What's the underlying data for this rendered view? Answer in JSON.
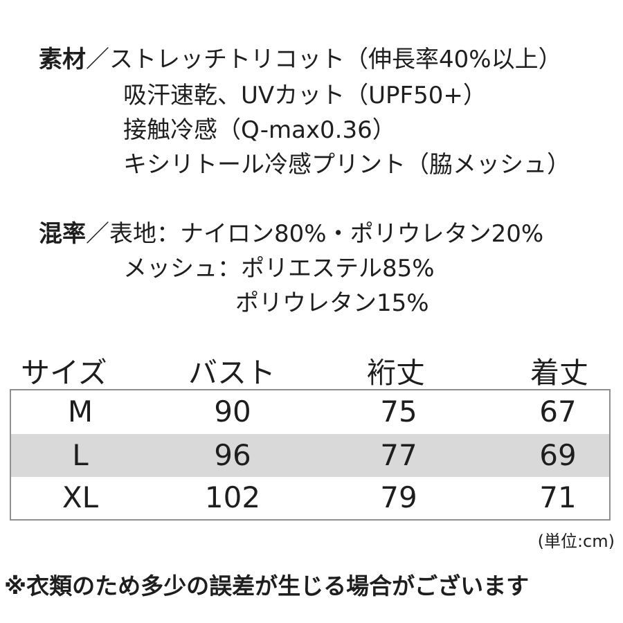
{
  "material": {
    "label": "素材",
    "lines": [
      "／ストレッチトリコット（伸長率40%以上）",
      "吸汗速乾、UVカット（UPF50+）",
      "接触冷感（Q-max0.36）",
      "キシリトール冷感プリント（脇メッシュ）"
    ]
  },
  "composition": {
    "label": "混率",
    "lines": [
      "／表地：ナイロン80%・ポリウレタン20%",
      "メッシュ：ポリエステル85%",
      "ポリウレタン15%"
    ]
  },
  "table": {
    "headers": [
      "サイズ",
      "バスト",
      "裄丈",
      "着丈"
    ],
    "rows": [
      {
        "cells": [
          "M",
          "90",
          "75",
          "67"
        ],
        "shaded": false
      },
      {
        "cells": [
          "L",
          "96",
          "77",
          "69"
        ],
        "shaded": true
      },
      {
        "cells": [
          "XL",
          "102",
          "79",
          "71"
        ],
        "shaded": false
      }
    ],
    "row_shade_color": "#d9d9d9",
    "border_color": "#8f8f8f"
  },
  "unit_note": "(単位:cm)",
  "disclaimer": "※衣類のため多少の誤差が生じる場合がございます"
}
